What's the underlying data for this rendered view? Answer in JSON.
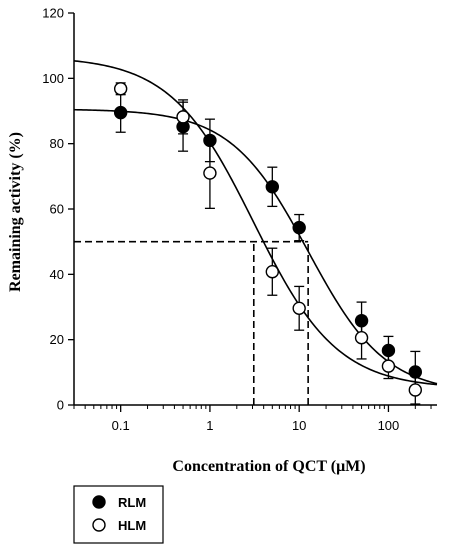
{
  "chart_data": {
    "type": "scatter",
    "title": "",
    "xlabel": "Concentration of QCT (μM)",
    "ylabel": "Remaining activity (%)",
    "xscale": "log",
    "xlim": [
      0.03,
      350
    ],
    "ylim": [
      0,
      120
    ],
    "x_ticks": [
      0.1,
      1,
      10,
      100
    ],
    "x_tick_labels": [
      "0.1",
      "1",
      "10",
      "100"
    ],
    "y_ticks": [
      0,
      20,
      40,
      60,
      80,
      100,
      120
    ],
    "y_tick_labels": [
      "0",
      "20",
      "40",
      "60",
      "80",
      "100",
      "120"
    ],
    "grid": false,
    "legend_position": "bottom-left, outside plot",
    "series": [
      {
        "name": "RLM",
        "marker": "filled-circle",
        "color": "#000000",
        "x": [
          0.1,
          0.5,
          1,
          5,
          10,
          50,
          100,
          200
        ],
        "y": [
          89.5,
          85.2,
          81.0,
          66.8,
          54.3,
          25.8,
          16.7,
          10.1
        ],
        "err": [
          6.0,
          7.5,
          6.5,
          6.0,
          4.0,
          5.7,
          4.3,
          6.3
        ],
        "fit": {
          "model": "four-parameter-logistic",
          "top": 90.6,
          "bottom": 3.5,
          "ic50": 12.6,
          "hill": 1.0
        }
      },
      {
        "name": "HLM",
        "marker": "open-circle",
        "color": "#000000",
        "x": [
          0.1,
          0.5,
          1,
          5,
          10,
          50,
          100,
          200
        ],
        "y": [
          96.8,
          88.2,
          71.0,
          40.8,
          29.6,
          20.6,
          11.9,
          4.6
        ],
        "err": [
          1.8,
          5.2,
          10.8,
          7.2,
          6.7,
          6.5,
          3.8,
          4.3
        ],
        "fit": {
          "model": "four-parameter-logistic",
          "top": 106.7,
          "bottom": 5.0,
          "ic50": 3.1,
          "hill": 0.93
        }
      }
    ],
    "reference_lines": [
      {
        "style": "dashed",
        "y": 50,
        "x_end": 12.6
      },
      {
        "style": "dashed",
        "x": 3.1,
        "y_top": 50
      },
      {
        "style": "dashed",
        "x": 12.6,
        "y_top": 50
      }
    ]
  }
}
